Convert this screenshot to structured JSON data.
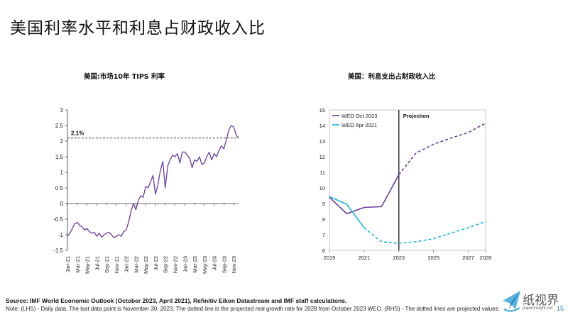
{
  "page": {
    "title": "美国利率水平和利息占财政收入比",
    "source": "Source: IMF World Economic Outlook (October 2023, April 2021), Refinitiv Eikon Datastream and IMF staff calculations.",
    "note": "Note: (LHS) - Daily data. The last data point is November 30, 2023. The dotted line is the projected real growth rate for 2028 from October 2023 WEO. (RHS) - The dotted lines are projected values.",
    "page_number": "15",
    "logo": {
      "text": "纸视界",
      "sub": "paperinsight.net",
      "icon": "paper-plane-icon"
    }
  },
  "chart_data": [
    {
      "type": "line",
      "title": "美国:市场10年 TIPS 利率",
      "x_tick_labels": [
        "Jan-21",
        "Mar-21",
        "May-21",
        "Jul-21",
        "Sep-21",
        "Nov-21",
        "Jan-22",
        "Mar-22",
        "May-22",
        "Jul-22",
        "Sep-22",
        "Nov-22",
        "Jan-23",
        "Mar-23",
        "May-23",
        "Jul-23",
        "Sep-23",
        "Nov-23"
      ],
      "y_ticks": [
        -1.5,
        -1,
        -0.5,
        0,
        0.5,
        1,
        1.5,
        2,
        2.5,
        3
      ],
      "ylim": [
        -1.5,
        3
      ],
      "x_range_months": [
        0,
        35
      ],
      "series": [
        {
          "color": "#6a3d9a",
          "x": [
            0,
            0.5,
            1,
            1.5,
            2,
            2.5,
            3,
            3.5,
            4,
            4.5,
            5,
            5.5,
            6,
            6.5,
            7,
            7.5,
            8,
            8.5,
            9,
            9.5,
            10,
            10.5,
            11,
            11.5,
            12,
            12.5,
            13,
            13.5,
            14,
            14.5,
            15,
            15.5,
            16,
            16.5,
            17,
            17.5,
            18,
            18.5,
            19,
            19.5,
            20,
            20.5,
            21,
            21.5,
            22,
            22.5,
            23,
            23.5,
            24,
            24.5,
            25,
            25.5,
            26,
            26.5,
            27,
            27.5,
            28,
            28.5,
            29,
            29.5,
            30,
            30.5,
            31,
            31.5,
            32,
            32.5,
            33,
            33.5,
            34,
            34.5,
            34.97
          ],
          "y": [
            -1.05,
            -0.95,
            -0.8,
            -0.65,
            -0.6,
            -0.7,
            -0.75,
            -0.85,
            -0.8,
            -0.9,
            -0.95,
            -0.92,
            -1.05,
            -0.95,
            -1.08,
            -1.0,
            -0.95,
            -0.92,
            -1.0,
            -1.1,
            -1.05,
            -1.0,
            -1.05,
            -0.9,
            -0.85,
            -0.6,
            -0.25,
            0.0,
            -0.2,
            0.1,
            0.25,
            0.2,
            0.55,
            0.5,
            0.7,
            0.9,
            0.3,
            0.6,
            1.05,
            1.35,
            0.5,
            1.2,
            1.4,
            1.55,
            1.5,
            1.6,
            1.3,
            1.65,
            1.65,
            1.55,
            1.45,
            1.15,
            1.4,
            1.35,
            1.5,
            1.25,
            1.3,
            1.5,
            1.65,
            1.4,
            1.6,
            1.5,
            1.7,
            1.85,
            1.75,
            2.05,
            2.35,
            2.5,
            2.45,
            2.2,
            2.1
          ]
        }
      ],
      "reference_line": {
        "value": 2.1,
        "label": "2.1%",
        "style": "dashed"
      }
    },
    {
      "type": "line",
      "title": "美国：利息支出占财政收入比",
      "x_tick_labels": [
        "2019",
        "2021",
        "2023",
        "2025",
        "2027",
        "2028"
      ],
      "y_ticks": [
        6,
        7,
        8,
        9,
        10,
        11,
        12,
        13,
        14,
        15
      ],
      "ylim": [
        6,
        15
      ],
      "xlim": [
        2019,
        2028
      ],
      "projection_start": 2023,
      "projection_label": "Projection",
      "legend_position": "top-left",
      "series": [
        {
          "name": "WEO Oct 2023",
          "color": "#6a3d9a",
          "x": [
            2019,
            2020,
            2021,
            2022,
            2023,
            2024,
            2025,
            2026,
            2027,
            2028
          ],
          "y": [
            9.4,
            8.35,
            8.75,
            8.8,
            10.85,
            12.25,
            12.8,
            13.2,
            13.55,
            14.15
          ],
          "solid_until": 2023
        },
        {
          "name": "WEO Apr 2021",
          "color": "#1fb6d8",
          "x": [
            2019,
            2020,
            2021,
            2022,
            2023,
            2024,
            2025,
            2026,
            2027,
            2028
          ],
          "y": [
            9.45,
            8.95,
            7.45,
            6.55,
            6.45,
            6.55,
            6.75,
            7.1,
            7.45,
            7.85
          ],
          "solid_until": 2021
        }
      ]
    }
  ]
}
